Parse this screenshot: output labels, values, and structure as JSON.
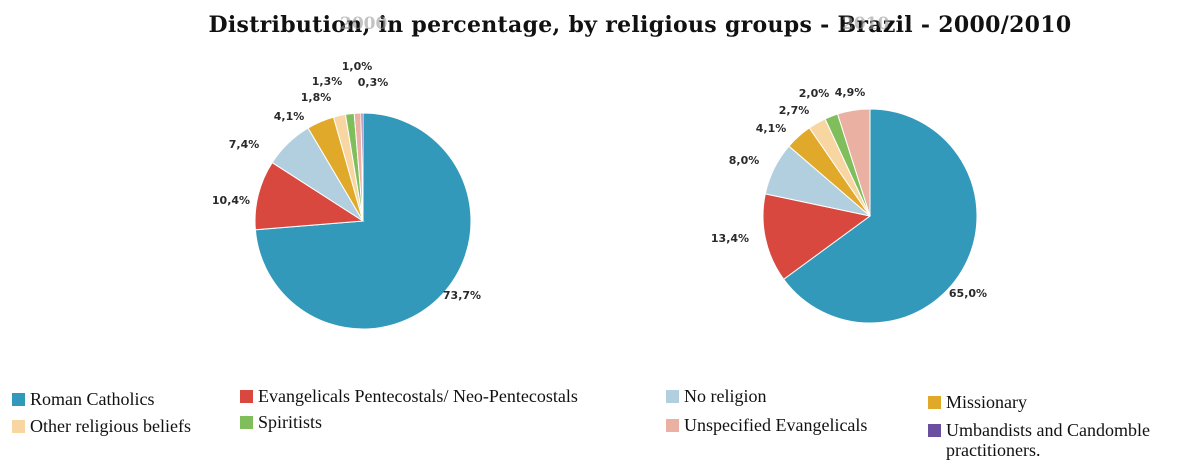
{
  "chart_data": {
    "type": "pie",
    "title": "Distribution, in percentage, by religious groups - Brazil - 2000/2010",
    "series_order": [
      "Roman Catholics",
      "Evangelicals Pentecostals/ Neo-Pentecostals",
      "No religion",
      "Missionary",
      "Other religious beliefs",
      "Spiritists",
      "Unspecified Evangelicals",
      "Umbandists and Candomble practitioners."
    ],
    "colors": {
      "Roman Catholics": "#3399bb",
      "Evangelicals Pentecostals/ Neo-Pentecostals": "#d9483e",
      "No religion": "#b2cfe0",
      "Missionary": "#e1a92a",
      "Other religious beliefs": "#f7d6a2",
      "Spiritists": "#7fbe5a",
      "Unspecified Evangelicals": "#eab0a2",
      "Umbandists and Candomble practitioners.": "#6a4fa0"
    },
    "pies": [
      {
        "year": "2000",
        "slices": [
          {
            "category": "Roman Catholics",
            "value": 73.7,
            "label": "73,7%"
          },
          {
            "category": "Evangelicals Pentecostals/ Neo-Pentecostals",
            "value": 10.4,
            "label": "10,4%"
          },
          {
            "category": "No religion",
            "value": 7.4,
            "label": "7,4%"
          },
          {
            "category": "Missionary",
            "value": 4.1,
            "label": "4,1%"
          },
          {
            "category": "Other religious beliefs",
            "value": 1.8,
            "label": "1,8%"
          },
          {
            "category": "Spiritists",
            "value": 1.3,
            "label": "1,3%"
          },
          {
            "category": "Unspecified Evangelicals",
            "value": 1.0,
            "label": "1,0%"
          },
          {
            "category": "Umbandists and Candomble practitioners.",
            "value": 0.3,
            "label": "0,3%"
          }
        ]
      },
      {
        "year": "2010",
        "slices": [
          {
            "category": "Roman Catholics",
            "value": 65.0,
            "label": "65,0%"
          },
          {
            "category": "Evangelicals Pentecostals/ Neo-Pentecostals",
            "value": 13.4,
            "label": "13,4%"
          },
          {
            "category": "No religion",
            "value": 8.0,
            "label": "8,0%"
          },
          {
            "category": "Missionary",
            "value": 4.1,
            "label": "4,1%"
          },
          {
            "category": "Other religious beliefs",
            "value": 2.7,
            "label": "2,7%"
          },
          {
            "category": "Spiritists",
            "value": 2.0,
            "label": "2,0%"
          },
          {
            "category": "Unspecified Evangelicals",
            "value": 4.9,
            "label": "4,9%"
          }
        ]
      }
    ],
    "legend": [
      {
        "label": "Roman Catholics",
        "category": "Roman Catholics"
      },
      {
        "label": "Evangelicals Pentecostals/ Neo-Pentecostals",
        "category": "Evangelicals Pentecostals/ Neo-Pentecostals"
      },
      {
        "label": "No religion",
        "category": "No religion"
      },
      {
        "label": " Missionary",
        "category": "Missionary"
      },
      {
        "label": "Other religious beliefs",
        "category": "Other religious beliefs"
      },
      {
        "label": "Spiritists",
        "category": "Spiritists"
      },
      {
        "label": "Unspecified Evangelicals",
        "category": "Unspecified Evangelicals"
      },
      {
        "label": "Umbandists and Candomble practitioners.",
        "category": "Umbandists and Candomble practitioners."
      }
    ]
  }
}
